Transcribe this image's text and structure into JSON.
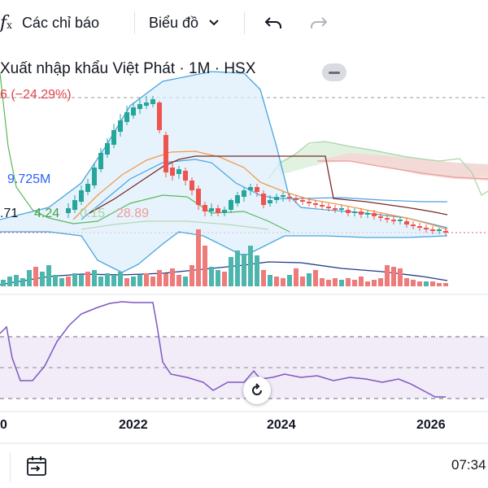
{
  "toolbar": {
    "indicator_icon": "fx-icon",
    "indicators_label": "Các chỉ báo",
    "chart_type_label": "Biểu đồ",
    "chart_type_icon": "chevron-down-icon",
    "undo_icon": "undo-icon",
    "redo_icon": "redo-icon"
  },
  "legend": {
    "title": "Xuất nhập khẩu Việt Phát · 1M · HSX",
    "change": "6 (−24.29%)",
    "volume_value": "9.725M",
    "ind_value_1": ".71",
    "ind_value_2": "4.24",
    "ind_value_3": "0.15",
    "ind_value_4": "28.89"
  },
  "axis": {
    "x_labels": [
      "0",
      "2022",
      "2024",
      "2026"
    ]
  },
  "controls": {
    "reset_icon": "rotate-icon",
    "goto_date_icon": "calendar-arrow-icon",
    "time": "07:34"
  },
  "colors": {
    "up": "#26a69a",
    "down": "#ef5350",
    "bb": "#4aa3df",
    "rsi": "#7e57c2"
  }
}
